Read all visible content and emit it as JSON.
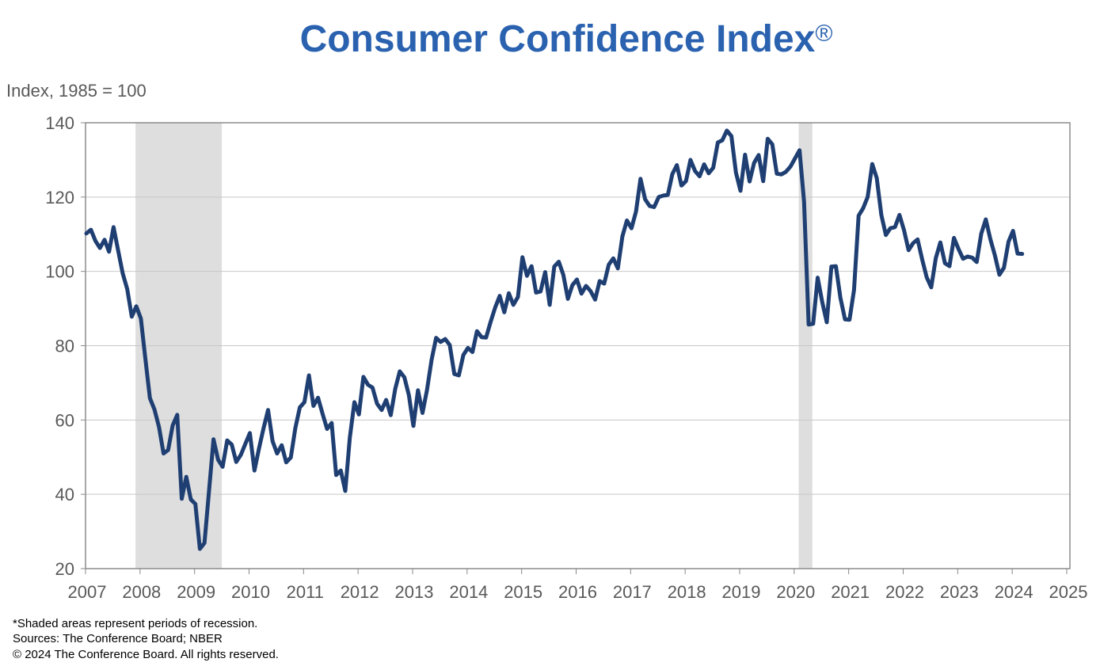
{
  "chart_data": {
    "type": "line",
    "title": "Consumer Confidence Index",
    "title_mark": "®",
    "ylabel": "Index, 1985 = 100",
    "xlabel": "",
    "ylim": [
      20,
      140
    ],
    "xlim": [
      2007,
      2025
    ],
    "yticks": [
      "20",
      "40",
      "60",
      "80",
      "100",
      "120",
      "140"
    ],
    "xticks": [
      "2007",
      "2008",
      "2009",
      "2010",
      "2011",
      "2012",
      "2013",
      "2014",
      "2015",
      "2016",
      "2017",
      "2018",
      "2019",
      "2020",
      "2021",
      "2022",
      "2023",
      "2024",
      "2025"
    ],
    "grid": "horizontal",
    "line_color": "#1f3f73",
    "title_color": "#2a62b0",
    "recession_color": "#dedede",
    "recessions": [
      [
        "2007-12",
        "2009-06"
      ],
      [
        "2020-02",
        "2020-04"
      ]
    ],
    "series": [
      {
        "start": "2007-01",
        "frequency": "monthly",
        "values": [
          110.2,
          111.2,
          108.2,
          106.3,
          108.5,
          105.3,
          111.9,
          105.6,
          99.5,
          95.2,
          87.8,
          90.6,
          87.3,
          76.4,
          65.9,
          62.8,
          58.1,
          51.0,
          51.9,
          58.5,
          61.4,
          38.8,
          44.7,
          38.6,
          37.4,
          25.3,
          26.9,
          40.8,
          54.8,
          49.3,
          47.4,
          54.5,
          53.4,
          48.7,
          50.6,
          53.6,
          56.5,
          46.4,
          52.3,
          57.7,
          62.7,
          54.3,
          51.0,
          53.2,
          48.6,
          49.9,
          57.8,
          63.4,
          64.8,
          72.0,
          63.8,
          66.0,
          61.7,
          57.6,
          59.2,
          45.2,
          46.4,
          40.9,
          55.2,
          64.8,
          61.5,
          71.6,
          69.5,
          68.7,
          64.4,
          62.7,
          65.4,
          61.3,
          68.4,
          73.1,
          71.5,
          66.7,
          58.4,
          68.0,
          61.9,
          68.1,
          76.2,
          82.1,
          81.0,
          81.8,
          80.2,
          72.4,
          72.0,
          77.5,
          79.4,
          78.3,
          83.9,
          82.3,
          82.2,
          86.4,
          90.3,
          93.4,
          89.0,
          94.1,
          91.0,
          93.1,
          103.8,
          98.8,
          101.4,
          94.3,
          94.6,
          99.8,
          91.0,
          101.3,
          102.6,
          99.1,
          92.6,
          96.3,
          97.8,
          94.0,
          96.1,
          94.7,
          92.4,
          97.4,
          96.7,
          101.8,
          103.5,
          100.8,
          109.4,
          113.7,
          111.6,
          116.1,
          124.9,
          119.4,
          117.6,
          117.3,
          120.0,
          120.4,
          120.6,
          126.2,
          128.6,
          123.1,
          124.3,
          130.0,
          127.0,
          125.6,
          128.8,
          126.4,
          127.9,
          134.7,
          135.3,
          137.9,
          136.4,
          126.6,
          121.7,
          131.4,
          124.2,
          129.2,
          131.3,
          124.3,
          135.7,
          134.2,
          126.3,
          126.1,
          126.8,
          128.2,
          130.4,
          132.6,
          118.8,
          85.7,
          85.9,
          98.3,
          91.7,
          86.3,
          101.3,
          101.4,
          92.9,
          87.1,
          87.0,
          95.0,
          115.0,
          117.0,
          120.0,
          128.9,
          125.1,
          115.2,
          109.8,
          111.6,
          111.9,
          115.2,
          111.1,
          105.7,
          107.6,
          108.6,
          103.2,
          98.4,
          95.7,
          103.6,
          107.8,
          102.2,
          101.4,
          109.0,
          106.0,
          103.4,
          104.0,
          103.7,
          102.5,
          110.1,
          114.0,
          108.7,
          104.3,
          99.1,
          101.0,
          108.0,
          110.9,
          104.8,
          104.7
        ]
      }
    ]
  },
  "footer": {
    "note": "*Shaded areas represent periods of recession.",
    "sources": "Sources: The Conference Board; NBER",
    "copyright": "© 2024 The Conference Board. All rights reserved."
  }
}
